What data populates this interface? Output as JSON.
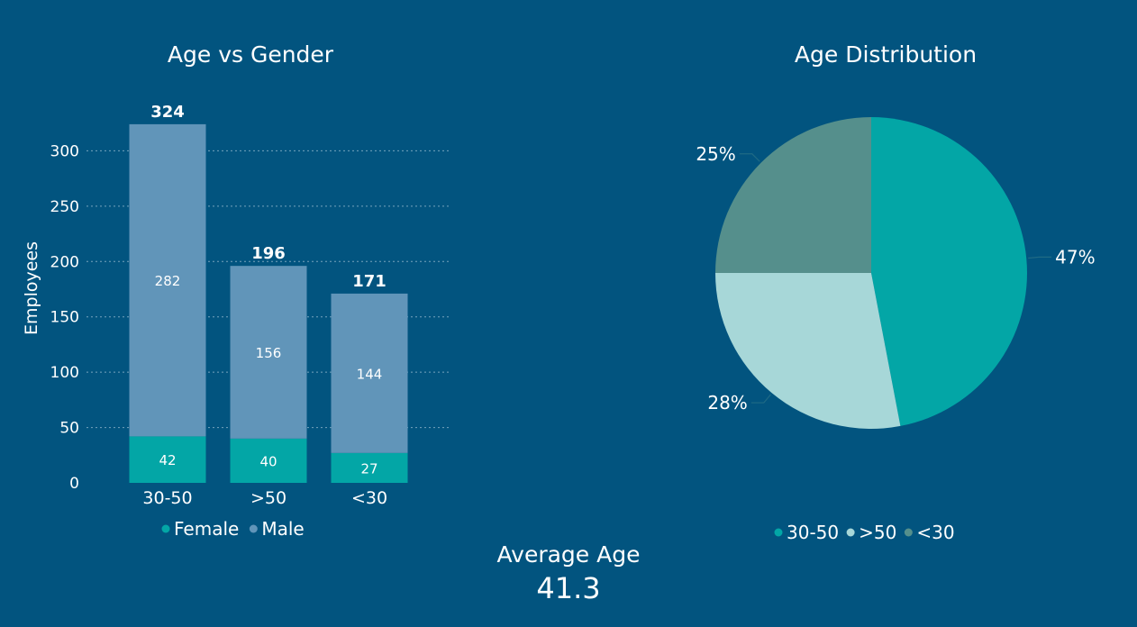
{
  "colors": {
    "background": "#02547f",
    "female": "#03a6a6",
    "male": "#6195b9",
    "grid": "#9fbfd4",
    "text": "#ffffff"
  },
  "chart_data": [
    {
      "type": "bar",
      "stacked": true,
      "title": "Age vs Gender",
      "xlabel": "",
      "ylabel": "Employees",
      "categories": [
        "30-50",
        ">50",
        "<30"
      ],
      "series": [
        {
          "name": "Female",
          "values": [
            42,
            40,
            27
          ],
          "color": "#03a6a6"
        },
        {
          "name": "Male",
          "values": [
            282,
            156,
            144
          ],
          "color": "#6195b9"
        }
      ],
      "totals": [
        324,
        196,
        171
      ],
      "ylim": [
        0,
        325
      ],
      "yticks": [
        0,
        50,
        100,
        150,
        200,
        250,
        300
      ],
      "grid": true,
      "legend_position": "bottom"
    },
    {
      "type": "pie",
      "title": "Age Distribution",
      "slices": [
        {
          "label": "30-50",
          "value": 47,
          "percent_label": "47%",
          "color": "#03a6a6"
        },
        {
          "label": ">50",
          "value": 28,
          "percent_label": "28%",
          "color": "#a7d7d8"
        },
        {
          "label": "<30",
          "value": 25,
          "percent_label": "25%",
          "color": "#558f8c"
        }
      ],
      "legend_position": "bottom"
    }
  ],
  "kpi": {
    "label": "Average Age",
    "value": "41.3"
  }
}
